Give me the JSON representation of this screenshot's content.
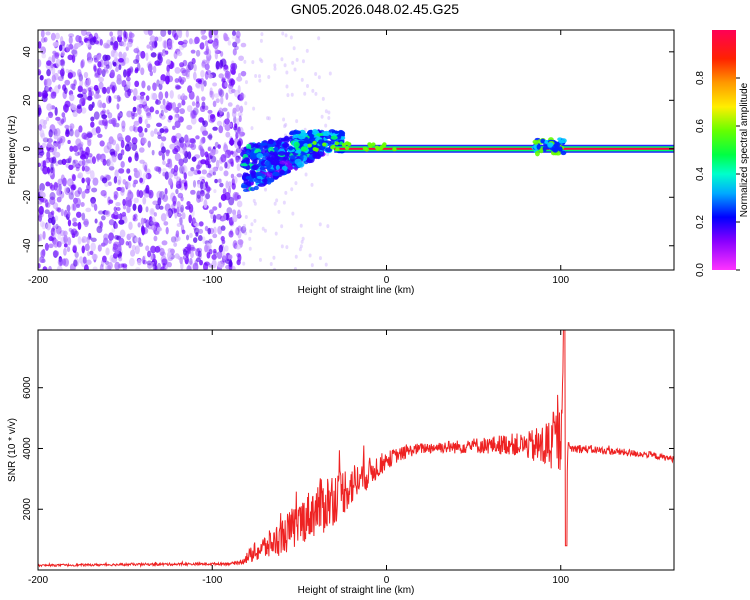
{
  "page": {
    "title": "GN05.2026.048.02.45.G25"
  },
  "chart_data": [
    {
      "type": "heatmap",
      "title": "GN05.2026.048.02.45.G25",
      "xlabel": "Height of straight line (km)",
      "ylabel": "Frequency (Hz)",
      "xlim": [
        -200,
        165
      ],
      "ylim": [
        -50,
        49
      ],
      "x_ticks": [
        -200,
        -100,
        0,
        100
      ],
      "y_ticks": [
        -40,
        -20,
        0,
        20,
        40
      ],
      "x_tick_labels": [
        "-200",
        "-100",
        "0",
        "100"
      ],
      "y_tick_labels": [
        "-40",
        "-20",
        "0",
        "20",
        "40"
      ],
      "grid": false,
      "colorbar": {
        "label": "Normalized spectral amplitude",
        "range": [
          0.0,
          1.0
        ],
        "ticks": [
          0.0,
          0.2,
          0.4,
          0.6,
          0.8
        ],
        "tick_labels": [
          "0.0",
          "0.2",
          "0.4",
          "0.6",
          "0.8"
        ],
        "colors": [
          "#ff33ff",
          "#6600ff",
          "#0000ff",
          "#00c8ff",
          "#00ff66",
          "#66ff00",
          "#ffee00",
          "#ff8800",
          "#ff0000",
          "#ff0055"
        ]
      },
      "features": [
        {
          "name": "noise region",
          "x_range": [
            -200,
            -82
          ],
          "freq_range": [
            -50,
            49
          ],
          "amplitude": 0.05
        },
        {
          "name": "onset scatter",
          "x_range": [
            -82,
            -35
          ],
          "freq_center": -6,
          "freq_spread": 10,
          "amplitude": 0.25
        },
        {
          "name": "rise",
          "x_range": [
            -55,
            -25
          ],
          "freq_center": 3,
          "freq_spread": 4,
          "amplitude": 0.35
        },
        {
          "name": "carrier line",
          "x_range": [
            -30,
            165
          ],
          "freq": 0,
          "amplitude": 0.95
        },
        {
          "name": "disturbance",
          "x_range": [
            85,
            102
          ],
          "freq_center": 1,
          "freq_spread": 3,
          "amplitude": 0.35
        }
      ]
    },
    {
      "type": "line",
      "xlabel": "Height of straight line (km)",
      "ylabel": "SNR (10 * v/v)",
      "xlim": [
        -200,
        165
      ],
      "ylim": [
        0,
        7900
      ],
      "x_ticks": [
        -200,
        -100,
        0,
        100
      ],
      "y_ticks": [
        2000,
        4000,
        6000
      ],
      "x_tick_labels": [
        "-200",
        "-100",
        "0",
        "100"
      ],
      "y_tick_labels": [
        "2000",
        "4000",
        "6000"
      ],
      "grid": false,
      "series": [
        {
          "name": "SNR",
          "color": "#ee2222",
          "x": [
            -200,
            -150,
            -100,
            -85,
            -75,
            -65,
            -55,
            -45,
            -40,
            -35,
            -30,
            -25,
            -20,
            -15,
            -10,
            -5,
            0,
            5,
            10,
            15,
            20,
            30,
            40,
            50,
            60,
            70,
            80,
            90,
            95,
            100,
            102,
            103,
            104,
            105,
            110,
            120,
            130,
            140,
            150,
            160,
            165
          ],
          "y": [
            150,
            180,
            200,
            220,
            600,
            900,
            1300,
            1800,
            2000,
            2200,
            2400,
            2600,
            2800,
            3000,
            3200,
            3400,
            3600,
            3750,
            3850,
            3950,
            4000,
            4050,
            4050,
            4100,
            4100,
            4150,
            4100,
            4050,
            4200,
            4300,
            7900,
            800,
            4100,
            4000,
            4000,
            3950,
            3900,
            3850,
            3800,
            3700,
            3650
          ],
          "noise_amplitude": [
            30,
            40,
            40,
            50,
            350,
            500,
            700,
            800,
            900,
            1000,
            900,
            800,
            700,
            600,
            500,
            400,
            300,
            250,
            220,
            200,
            180,
            200,
            220,
            250,
            300,
            350,
            400,
            800,
            1000,
            1100,
            0,
            0,
            200,
            150,
            150,
            130,
            120,
            120,
            110,
            100,
            100
          ]
        }
      ]
    }
  ]
}
